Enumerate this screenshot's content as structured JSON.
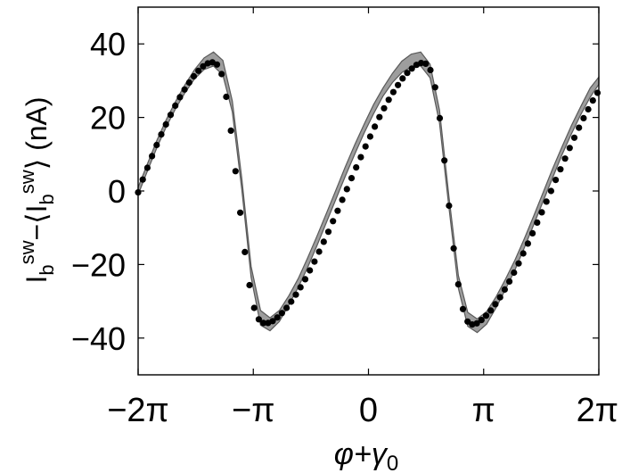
{
  "chart_data": {
    "type": "scatter",
    "title": "",
    "xlabel": {
      "base": "φ+γ",
      "subscript": "0"
    },
    "ylabel": {
      "parts": [
        {
          "text": "I",
          "style": "normal"
        },
        {
          "text": "b",
          "style": "sub"
        },
        {
          "text": "sw",
          "style": "sup"
        },
        {
          "text": "−⟨I",
          "style": "normal"
        },
        {
          "text": "b",
          "style": "sub"
        },
        {
          "text": "sw",
          "style": "sup"
        },
        {
          "text": "⟩ (nA)",
          "style": "normal"
        }
      ]
    },
    "xlim": [
      -6.2832,
      6.2832
    ],
    "ylim": [
      -50,
      50
    ],
    "x_ticks": [
      {
        "value": -6.2832,
        "label": "−2π"
      },
      {
        "value": -3.1416,
        "label": "−π"
      },
      {
        "value": 0,
        "label": "0"
      },
      {
        "value": 3.1416,
        "label": "π"
      },
      {
        "value": 6.2832,
        "label": "2π"
      }
    ],
    "y_ticks": [
      {
        "value": -40,
        "label": "−40"
      },
      {
        "value": -20,
        "label": "−20"
      },
      {
        "value": 0,
        "label": "0"
      },
      {
        "value": 20,
        "label": "20"
      },
      {
        "value": 40,
        "label": "40"
      }
    ],
    "grid": false,
    "legend": "none",
    "colors": {
      "points": "#000000",
      "band_fill": "#8c8c8c",
      "band_edge": "#5a5a5a"
    },
    "series": [
      {
        "kind": "points",
        "x": [
          -6.2832,
          -6.1566,
          -6.0301,
          -5.9035,
          -5.7769,
          -5.6504,
          -5.5238,
          -5.3972,
          -5.2707,
          -5.1441,
          -5.0175,
          -4.891,
          -4.7644,
          -4.6378,
          -4.5113,
          -4.3847,
          -4.2581,
          -4.1316,
          -4.005,
          -3.8784,
          -3.7519,
          -3.6253,
          -3.4987,
          -3.3722,
          -3.2456,
          -3.119,
          -2.9925,
          -2.8659,
          -2.7393,
          -2.6128,
          -2.4862,
          -2.3596,
          -2.2331,
          -2.1065,
          -1.9799,
          -1.8534,
          -1.7268,
          -1.6002,
          -1.4737,
          -1.3471,
          -1.2205,
          -1.094,
          -0.9674,
          -0.8408,
          -0.7143,
          -0.5877,
          -0.4611,
          -0.3346,
          -0.208,
          -0.0814,
          0.0451,
          0.1717,
          0.2983,
          0.4248,
          0.5514,
          0.678,
          0.8045,
          0.9311,
          1.0577,
          1.1842,
          1.3108,
          1.4374,
          1.5639,
          1.6905,
          1.8171,
          1.9436,
          2.0702,
          2.1968,
          2.3233,
          2.4499,
          2.5765,
          2.703,
          2.8296,
          2.9562,
          3.0827,
          3.2093,
          3.3359,
          3.4624,
          3.589,
          3.7156,
          3.8421,
          3.9687,
          4.0953,
          4.2218,
          4.3484,
          4.475,
          4.6015,
          4.7281,
          4.8547,
          4.9812,
          5.1078,
          5.2344,
          5.3609,
          5.4875,
          5.6141,
          5.7406,
          5.8672,
          5.9938,
          6.1203,
          6.2469
        ],
        "y": [
          -0.4,
          3.1,
          6.3,
          9.5,
          12.5,
          15.4,
          18.1,
          20.7,
          23.2,
          25.5,
          27.6,
          29.5,
          31.2,
          32.7,
          33.9,
          34.7,
          35.0,
          34.4,
          31.8,
          25.6,
          16.4,
          5.4,
          -5.9,
          -16.6,
          -25.6,
          -31.8,
          -34.9,
          -35.9,
          -35.9,
          -35.4,
          -34.4,
          -33.2,
          -31.8,
          -30.1,
          -28.2,
          -26.2,
          -24.0,
          -21.6,
          -19.2,
          -16.5,
          -13.8,
          -11.1,
          -8.2,
          -5.4,
          -2.4,
          0.5,
          3.5,
          6.4,
          9.2,
          12.1,
          14.8,
          17.5,
          20.1,
          22.5,
          24.8,
          26.9,
          28.8,
          30.6,
          32.1,
          33.3,
          34.3,
          34.8,
          34.6,
          32.9,
          28.2,
          19.8,
          8.3,
          -4.0,
          -15.6,
          -25.4,
          -32.1,
          -35.5,
          -36.3,
          -36.0,
          -35.1,
          -33.9,
          -32.5,
          -30.8,
          -28.9,
          -26.8,
          -24.6,
          -22.2,
          -19.7,
          -17.0,
          -14.3,
          -11.5,
          -8.6,
          -5.8,
          -2.9,
          0.0,
          3.0,
          5.9,
          8.8,
          11.7,
          14.5,
          17.2,
          19.8,
          22.2,
          24.6,
          26.7
        ]
      },
      {
        "kind": "band",
        "x": [
          -6.2832,
          -6.0263,
          -5.7694,
          -5.5125,
          -5.2556,
          -4.9987,
          -4.7418,
          -4.4849,
          -4.228,
          -3.9711,
          -3.7142,
          -3.4573,
          -3.2004,
          -2.9435,
          -2.6866,
          -2.4297,
          -2.1728,
          -1.9159,
          -1.659,
          -1.4021,
          -1.1452,
          -0.8883,
          -0.6314,
          -0.3745,
          -0.1176,
          0.1393,
          0.3962,
          0.6531,
          0.91,
          1.1669,
          1.4238,
          1.6807,
          1.9376,
          2.1945,
          2.4514,
          2.7083,
          2.9652,
          3.2221,
          3.479,
          3.7359,
          3.9928,
          4.2497,
          4.5066,
          4.7635,
          5.0204,
          5.2773,
          5.5342,
          5.7911,
          6.048,
          6.2832
        ],
        "upper": [
          1.0,
          7.5,
          13.8,
          19.5,
          24.5,
          29.0,
          33.0,
          36.2,
          37.8,
          35.5,
          24.5,
          3.5,
          -20.5,
          -32.5,
          -34.5,
          -32.5,
          -28.5,
          -23.8,
          -18.2,
          -12.2,
          -6.0,
          0.3,
          6.6,
          12.6,
          18.2,
          23.5,
          28.0,
          32.0,
          35.3,
          37.2,
          37.8,
          34.5,
          22.0,
          -1.5,
          -23.0,
          -33.0,
          -34.8,
          -32.8,
          -28.8,
          -24.0,
          -18.8,
          -13.0,
          -6.8,
          -0.4,
          6.0,
          12.0,
          17.8,
          23.0,
          28.0,
          31.0
        ],
        "lower": [
          -1.0,
          5.5,
          11.8,
          17.5,
          22.5,
          26.8,
          30.5,
          33.0,
          34.0,
          31.5,
          21.5,
          0.5,
          -23.5,
          -36.5,
          -38.0,
          -35.5,
          -31.0,
          -26.2,
          -20.8,
          -14.8,
          -8.5,
          -2.2,
          4.0,
          10.0,
          15.8,
          21.0,
          25.8,
          29.5,
          32.2,
          33.8,
          34.0,
          30.8,
          18.5,
          -4.5,
          -26.5,
          -36.8,
          -38.5,
          -36.2,
          -31.8,
          -26.8,
          -21.5,
          -15.5,
          -9.2,
          -2.8,
          3.5,
          9.8,
          15.5,
          20.8,
          25.5,
          29.0
        ]
      }
    ]
  }
}
